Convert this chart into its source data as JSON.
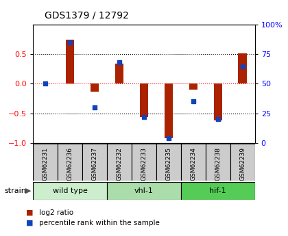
{
  "title": "GDS1379 / 12792",
  "samples": [
    "GSM62231",
    "GSM62236",
    "GSM62237",
    "GSM62232",
    "GSM62233",
    "GSM62235",
    "GSM62234",
    "GSM62238",
    "GSM62239"
  ],
  "log2_ratio": [
    0.0,
    0.75,
    -0.13,
    0.34,
    -0.56,
    -0.92,
    -0.1,
    -0.62,
    0.52
  ],
  "percentile_rank": [
    50,
    85,
    30,
    68,
    22,
    4,
    35,
    20,
    65
  ],
  "groups": [
    {
      "label": "wild type",
      "start": 0,
      "end": 3,
      "color": "#cceecc"
    },
    {
      "label": "vhl-1",
      "start": 3,
      "end": 6,
      "color": "#aaddaa"
    },
    {
      "label": "hif-1",
      "start": 6,
      "end": 9,
      "color": "#55cc55"
    }
  ],
  "strain_label": "strain",
  "ylim_left": [
    -1,
    1
  ],
  "ylim_right": [
    0,
    100
  ],
  "yticks_left": [
    -1,
    -0.5,
    0,
    0.5
  ],
  "yticks_right": [
    0,
    25,
    50,
    75,
    100
  ],
  "bar_color": "#aa2200",
  "dot_color": "#1144bb",
  "background_color": "#ffffff",
  "legend_log2": "log2 ratio",
  "legend_pct": "percentile rank within the sample"
}
